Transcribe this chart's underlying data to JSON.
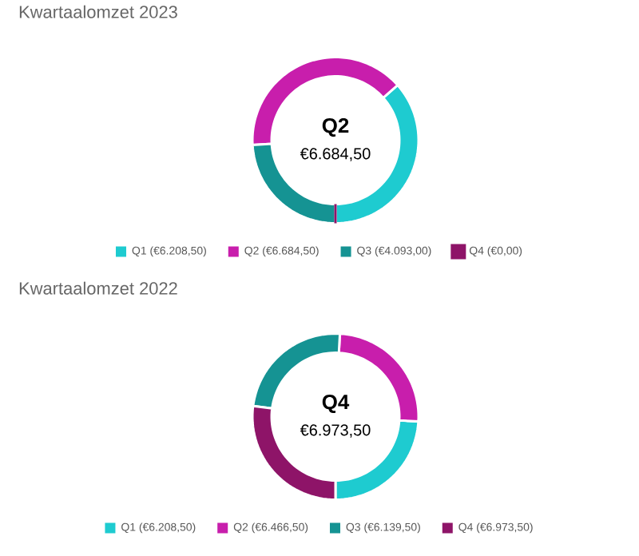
{
  "chart_data": [
    {
      "type": "donut",
      "title": "Kwartaalomzet 2023",
      "categories": [
        "Q1 (€6.208,50)",
        "Q2 (€6.684,50)",
        "Q3 (€4.093,00)",
        "Q4 (€0,00)"
      ],
      "values": [
        6208.5,
        6684.5,
        4093.0,
        0.0
      ],
      "colors": [
        "#1ecbd0",
        "#c81eac",
        "#159393",
        "#8e1468"
      ],
      "legend": "bottom",
      "annotations": [
        "Q2",
        "€6.684,50"
      ]
    },
    {
      "type": "donut",
      "title": "Kwartaalomzet 2022",
      "categories": [
        "Q1 (€6.208,50)",
        "Q2 (€6.466,50)",
        "Q3 (€6.139,50)",
        "Q4 (€6.973,50)"
      ],
      "values": [
        6208.5,
        6466.5,
        6139.5,
        6973.5
      ],
      "colors": [
        "#1ecbd0",
        "#c81eac",
        "#159393",
        "#8e1468"
      ],
      "legend": "bottom",
      "annotations": [
        "Q4",
        "€6.973,50"
      ]
    }
  ]
}
